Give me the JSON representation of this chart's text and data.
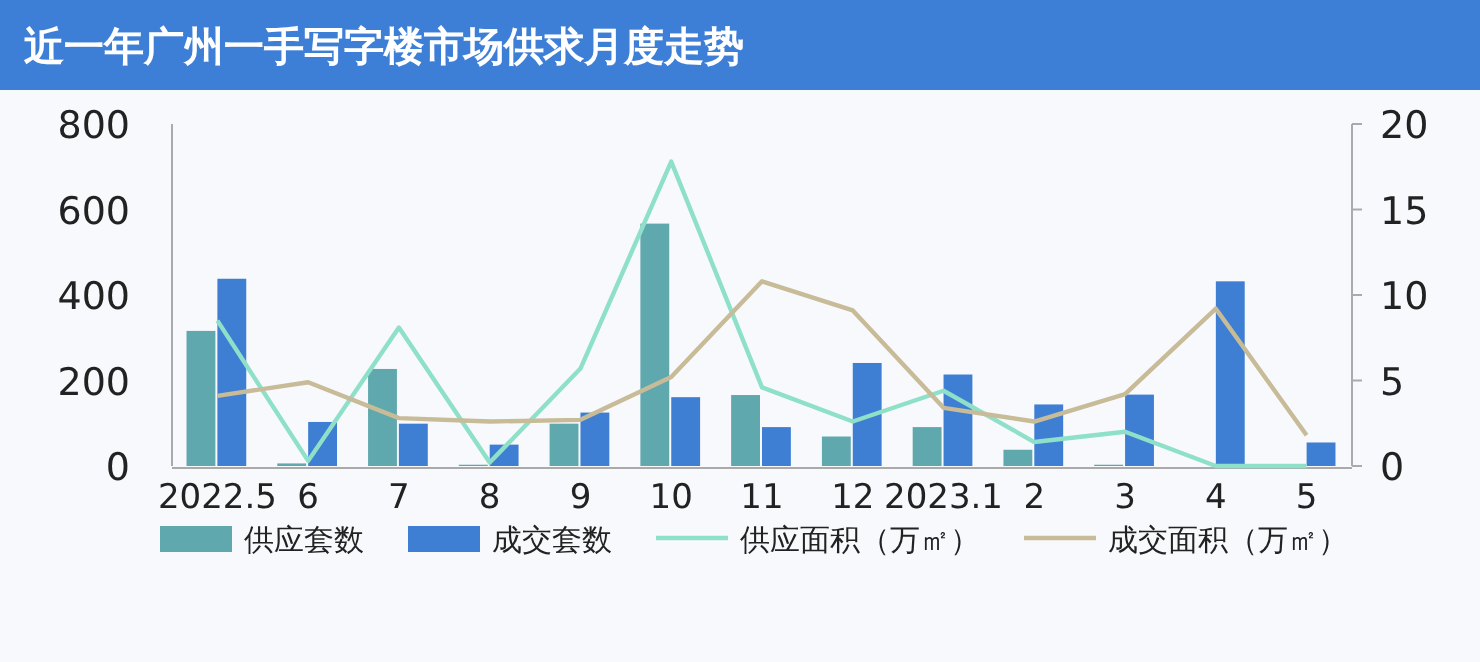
{
  "chart_data": {
    "type": "bar",
    "title": "近一年广州一手写字楼市场供求月度走势",
    "categories": [
      "2022.5",
      "6",
      "7",
      "8",
      "9",
      "10",
      "11",
      "12",
      "2023.1",
      "2",
      "3",
      "4",
      "5"
    ],
    "series": [
      {
        "name": "供应套数",
        "color": "#5fa8ad",
        "values": [
          316,
          6,
          227,
          3,
          99,
          567,
          166,
          69,
          91,
          38,
          3,
          0,
          0
        ]
      },
      {
        "name": "成交套数",
        "color": "#3f7fd3",
        "values": [
          438,
          103,
          99,
          50,
          125,
          161,
          91,
          241,
          214,
          144,
          167,
          432,
          55
        ]
      },
      {
        "name": "供应面积（万㎡）",
        "type": "line",
        "axis": "y2",
        "color": "#8fe0c8",
        "values": [
          8.5,
          0.3,
          8.1,
          0.2,
          5.7,
          17.8,
          4.6,
          2.6,
          4.4,
          1.4,
          2.0,
          0,
          0
        ]
      },
      {
        "name": "成交面积（万㎡）",
        "type": "line",
        "axis": "y2",
        "color": "#c7bb98",
        "values": [
          4.1,
          4.9,
          2.8,
          2.6,
          2.7,
          5.2,
          10.8,
          9.1,
          3.4,
          2.6,
          4.2,
          9.2,
          1.8
        ]
      }
    ],
    "ylim": [
      0,
      800
    ],
    "yticks": [
      0,
      200,
      400,
      600,
      800
    ],
    "y2lim": [
      0,
      20
    ],
    "y2ticks": [
      0,
      5,
      10,
      15,
      20
    ],
    "grid": false,
    "legend": "bottom",
    "marker": "none",
    "line_style": "solid"
  }
}
